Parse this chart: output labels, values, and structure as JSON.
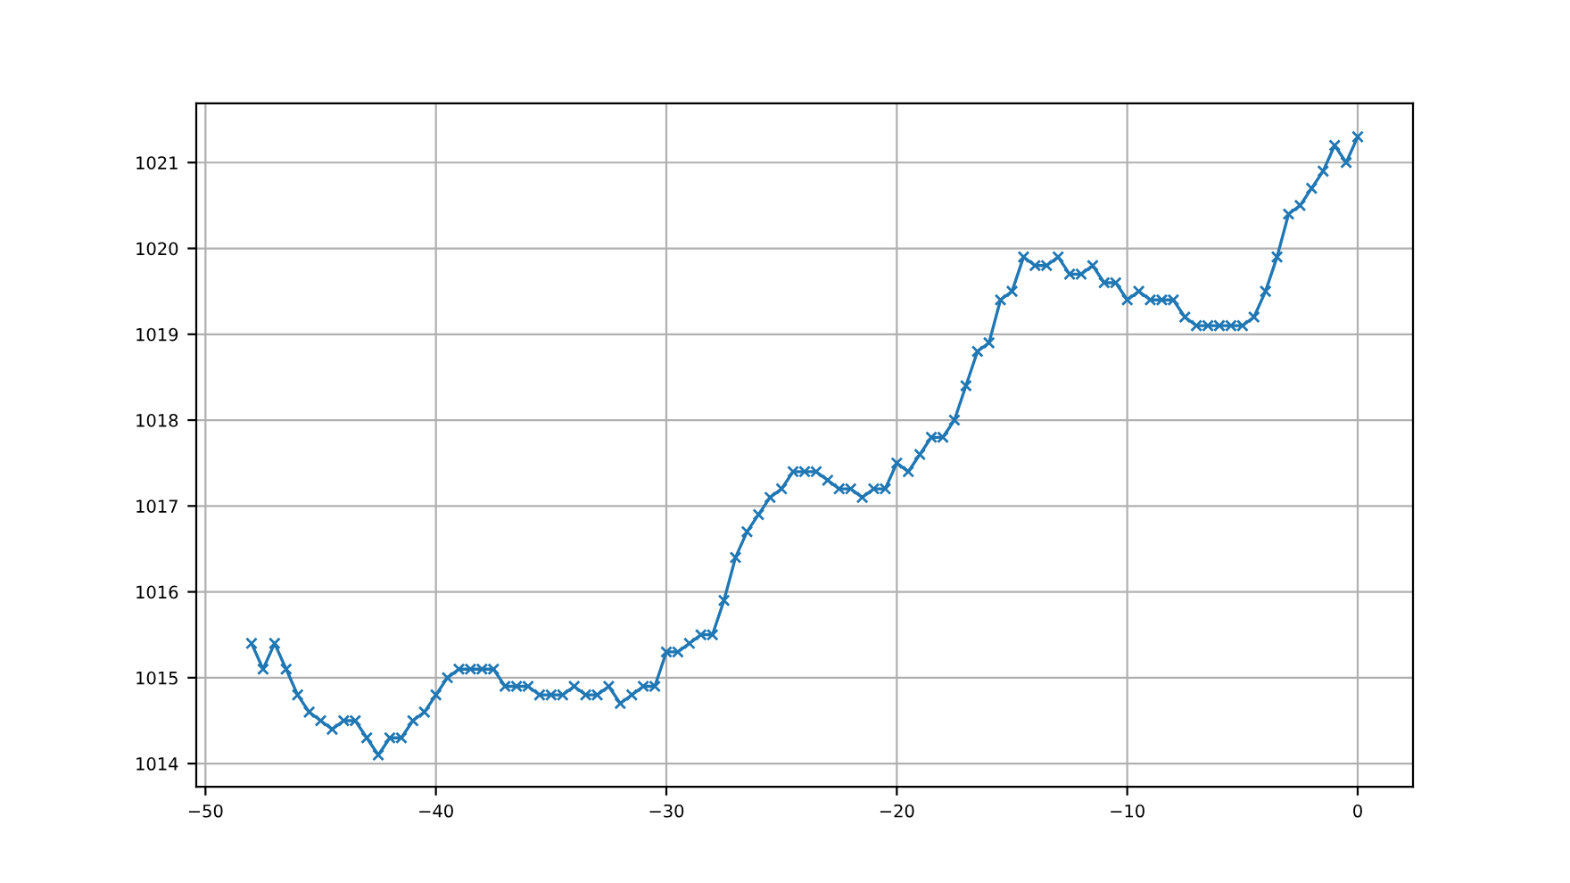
{
  "chart_data": {
    "type": "line",
    "marker": "cross",
    "grid": true,
    "x": [
      -48,
      -47.5,
      -47,
      -46.5,
      -46,
      -45.5,
      -45,
      -44.5,
      -44,
      -43.5,
      -43,
      -42.5,
      -42,
      -41.5,
      -41,
      -40.5,
      -40,
      -39.5,
      -39,
      -38.5,
      -38,
      -37.5,
      -37,
      -36.5,
      -36,
      -35.5,
      -35,
      -34.5,
      -34,
      -33.5,
      -33,
      -32.5,
      -32,
      -31.5,
      -31,
      -30.5,
      -30,
      -29.5,
      -29,
      -28.5,
      -28,
      -27.5,
      -27,
      -26.5,
      -26,
      -25.5,
      -25,
      -24.5,
      -24,
      -23.5,
      -23,
      -22.5,
      -22,
      -21.5,
      -21,
      -20.5,
      -20,
      -19.5,
      -19,
      -18.5,
      -18,
      -17.5,
      -17,
      -16.5,
      -16,
      -15.5,
      -15,
      -14.5,
      -14,
      -13.5,
      -13,
      -12.5,
      -12,
      -11.5,
      -11,
      -10.5,
      -10,
      -9.5,
      -9,
      -8.5,
      -8,
      -7.5,
      -7,
      -6.5,
      -6,
      -5.5,
      -5,
      -4.5,
      -4,
      -3.5,
      -3,
      -2.5,
      -2,
      -1.5,
      -1,
      -0.5,
      0
    ],
    "series": [
      {
        "color": "#1f77b4",
        "values": [
          1015.4,
          1015.1,
          1015.4,
          1015.1,
          1014.8,
          1014.6,
          1014.5,
          1014.4,
          1014.5,
          1014.5,
          1014.3,
          1014.1,
          1014.3,
          1014.3,
          1014.5,
          1014.6,
          1014.8,
          1015.0,
          1015.1,
          1015.1,
          1015.1,
          1015.1,
          1014.9,
          1014.9,
          1014.9,
          1014.8,
          1014.8,
          1014.8,
          1014.9,
          1014.8,
          1014.8,
          1014.9,
          1014.7,
          1014.8,
          1014.9,
          1014.9,
          1015.3,
          1015.3,
          1015.4,
          1015.5,
          1015.5,
          1015.9,
          1016.4,
          1016.7,
          1016.9,
          1017.1,
          1017.2,
          1017.4,
          1017.4,
          1017.4,
          1017.3,
          1017.2,
          1017.2,
          1017.1,
          1017.2,
          1017.2,
          1017.5,
          1017.4,
          1017.6,
          1017.8,
          1017.8,
          1018.0,
          1018.4,
          1018.8,
          1018.9,
          1019.4,
          1019.5,
          1019.9,
          1019.8,
          1019.8,
          1019.9,
          1019.7,
          1019.7,
          1019.8,
          1019.6,
          1019.6,
          1019.4,
          1019.5,
          1019.4,
          1019.4,
          1019.4,
          1019.2,
          1019.1,
          1019.1,
          1019.1,
          1019.1,
          1019.1,
          1019.2,
          1019.5,
          1019.9,
          1020.4,
          1020.5,
          1020.7,
          1020.9,
          1021.2,
          1021.0,
          1021.3
        ]
      }
    ],
    "xlim": [
      -50.4,
      2.4
    ],
    "xticks": [
      {
        "value": -50,
        "label": "−50"
      },
      {
        "value": -40,
        "label": "−40"
      },
      {
        "value": -30,
        "label": "−30"
      },
      {
        "value": -20,
        "label": "−20"
      },
      {
        "value": -10,
        "label": "−10"
      },
      0
    ],
    "ylim": [
      1013.73,
      1021.69
    ],
    "yticks": [
      1014,
      1015,
      1016,
      1017,
      1018,
      1019,
      1020,
      1021
    ]
  }
}
